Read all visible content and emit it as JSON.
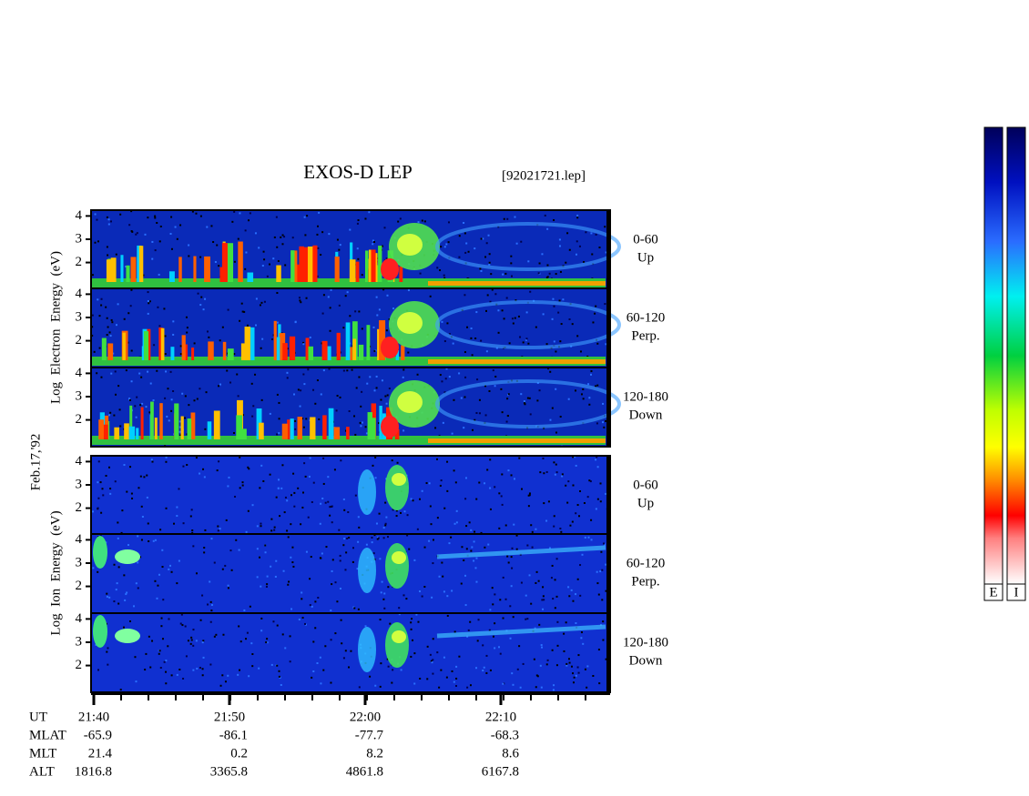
{
  "title": "EXOS-D LEP",
  "file": "[92021721.lep]",
  "date": "Feb.17,'92",
  "groups": [
    {
      "ylabel": "Log  Electron  Energy  (eV)",
      "yticks": [
        2,
        3,
        4
      ],
      "ylim": [
        0.85,
        4.25
      ],
      "panels": [
        {
          "angle": "0-60",
          "direction": "Up"
        },
        {
          "angle": "60-120",
          "direction": "Perp."
        },
        {
          "angle": "120-180",
          "direction": "Down"
        }
      ]
    },
    {
      "ylabel": "Log  Ion  Energy  (eV)",
      "yticks": [
        2,
        3,
        4
      ],
      "ylim": [
        0.85,
        4.25
      ],
      "panels": [
        {
          "angle": "0-60",
          "direction": "Up"
        },
        {
          "angle": "60-120",
          "direction": "Perp."
        },
        {
          "angle": "120-180",
          "direction": "Down"
        }
      ]
    }
  ],
  "orbit": {
    "rows": [
      [
        "UT",
        "21:40",
        "21:50",
        "22:00",
        "22:10"
      ],
      [
        "MLAT",
        "-65.9",
        "-86.1",
        "-77.7",
        "-68.3"
      ],
      [
        "MLT",
        "21.4",
        "0.2",
        "8.2",
        "8.6"
      ],
      [
        "ALT",
        "1816.8",
        "3365.8",
        "4861.8",
        "6167.8"
      ]
    ]
  },
  "colorbar": {
    "labels": [
      "E",
      "I"
    ]
  }
}
